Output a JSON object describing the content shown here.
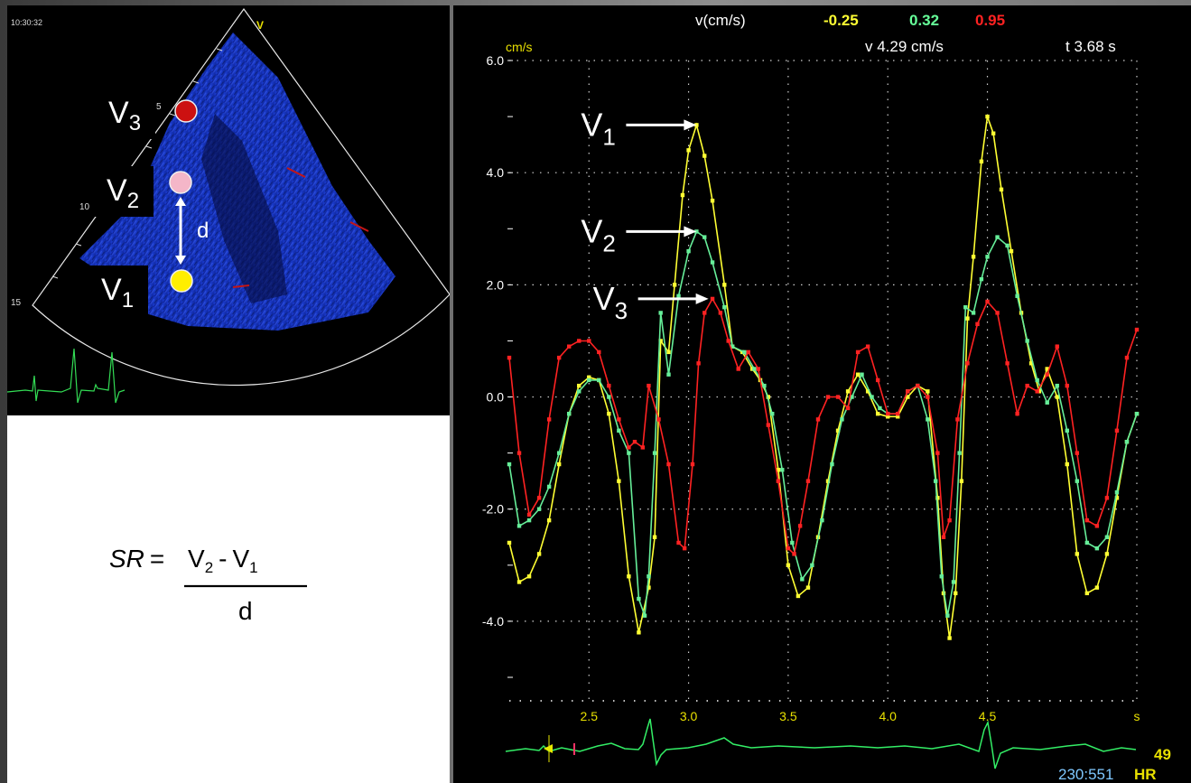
{
  "echo": {
    "timestamp": "10:30:32",
    "depth_labels": [
      "5",
      "10",
      "15"
    ],
    "marker_letter": "V",
    "points": [
      {
        "label": "V",
        "sub": "3",
        "color": "#cc1111"
      },
      {
        "label": "V",
        "sub": "2",
        "color": "#f4b6c8"
      },
      {
        "label": "V",
        "sub": "1",
        "color": "#ffee00"
      }
    ],
    "distance_label": "d"
  },
  "formula": {
    "lhs": "SR",
    "equals": "=",
    "term1": "V",
    "term1_sub": "2",
    "minus": "-",
    "term2": "V",
    "term2_sub": "1",
    "denominator": "d"
  },
  "readout": {
    "label": "v(cm/s)",
    "values": [
      "-0.25",
      "0.32",
      "0.95"
    ],
    "colors": [
      "#ffff33",
      "#66ff99",
      "#ff2222"
    ],
    "velocity": "v 4.29 cm/s",
    "time": "t 3.68 s"
  },
  "annotations": [
    {
      "label": "V",
      "sub": "1",
      "x": 3.04,
      "y": 4.85
    },
    {
      "label": "V",
      "sub": "2",
      "x": 3.04,
      "y": 2.95
    },
    {
      "label": "V",
      "sub": "3",
      "x": 3.1,
      "y": 1.75
    }
  ],
  "ecg": {
    "counter": "230:551",
    "hr_label": "HR",
    "hr_value": "49"
  },
  "chart_data": {
    "type": "line",
    "ylabel": "cm/s",
    "xlabel": "s",
    "xlim": [
      2.1,
      5.25
    ],
    "ylim": [
      -5.0,
      6.0
    ],
    "y_ticks": [
      6.0,
      4.0,
      2.0,
      0.0,
      -2.0,
      -4.0
    ],
    "y_tick_labels": [
      "6.0",
      "4.0",
      "2.0",
      "0.0",
      "-2.0",
      "-4.0"
    ],
    "x_ticks": [
      2.5,
      3.0,
      3.5,
      4.0,
      4.5
    ],
    "x_tick_labels": [
      "2.5",
      "3.0",
      "3.5",
      "4.0",
      "4.5"
    ],
    "grid": true,
    "series": [
      {
        "color": "#ffff33",
        "points": [
          [
            2.1,
            -2.6
          ],
          [
            2.15,
            -3.3
          ],
          [
            2.2,
            -3.2
          ],
          [
            2.25,
            -2.8
          ],
          [
            2.3,
            -2.2
          ],
          [
            2.35,
            -1.2
          ],
          [
            2.4,
            -0.3
          ],
          [
            2.45,
            0.2
          ],
          [
            2.5,
            0.35
          ],
          [
            2.55,
            0.3
          ],
          [
            2.6,
            -0.3
          ],
          [
            2.65,
            -1.5
          ],
          [
            2.7,
            -3.2
          ],
          [
            2.75,
            -4.2
          ],
          [
            2.8,
            -3.4
          ],
          [
            2.83,
            -2.5
          ],
          [
            2.86,
            1.0
          ],
          [
            2.9,
            0.8
          ],
          [
            2.93,
            2.0
          ],
          [
            2.97,
            3.6
          ],
          [
            3.0,
            4.4
          ],
          [
            3.04,
            4.85
          ],
          [
            3.08,
            4.3
          ],
          [
            3.12,
            3.5
          ],
          [
            3.18,
            2.0
          ],
          [
            3.22,
            0.9
          ],
          [
            3.27,
            0.8
          ],
          [
            3.32,
            0.5
          ],
          [
            3.36,
            0.3
          ],
          [
            3.4,
            0.0
          ],
          [
            3.45,
            -1.3
          ],
          [
            3.5,
            -3.0
          ],
          [
            3.55,
            -3.55
          ],
          [
            3.6,
            -3.4
          ],
          [
            3.65,
            -2.5
          ],
          [
            3.7,
            -1.5
          ],
          [
            3.75,
            -0.6
          ],
          [
            3.8,
            0.1
          ],
          [
            3.85,
            0.4
          ],
          [
            3.9,
            0.1
          ],
          [
            3.95,
            -0.3
          ],
          [
            4.0,
            -0.35
          ],
          [
            4.05,
            -0.35
          ],
          [
            4.1,
            0.0
          ],
          [
            4.15,
            0.2
          ],
          [
            4.2,
            0.1
          ],
          [
            4.25,
            -1.8
          ],
          [
            4.28,
            -3.5
          ],
          [
            4.31,
            -4.3
          ],
          [
            4.34,
            -3.5
          ],
          [
            4.37,
            -1.5
          ],
          [
            4.4,
            1.4
          ],
          [
            4.43,
            2.5
          ],
          [
            4.47,
            4.2
          ],
          [
            4.5,
            5.0
          ],
          [
            4.53,
            4.7
          ],
          [
            4.57,
            3.7
          ],
          [
            4.62,
            2.6
          ],
          [
            4.67,
            1.5
          ],
          [
            4.72,
            0.6
          ],
          [
            4.76,
            0.1
          ],
          [
            4.8,
            0.5
          ],
          [
            4.85,
            0.0
          ],
          [
            4.9,
            -1.2
          ],
          [
            4.95,
            -2.8
          ],
          [
            5.0,
            -3.5
          ],
          [
            5.05,
            -3.4
          ],
          [
            5.1,
            -2.8
          ],
          [
            5.15,
            -1.8
          ],
          [
            5.2,
            -0.8
          ],
          [
            5.25,
            -0.3
          ]
        ]
      },
      {
        "color": "#66ee99",
        "points": [
          [
            2.1,
            -1.2
          ],
          [
            2.15,
            -2.3
          ],
          [
            2.2,
            -2.2
          ],
          [
            2.25,
            -2.0
          ],
          [
            2.3,
            -1.6
          ],
          [
            2.35,
            -1.0
          ],
          [
            2.4,
            -0.3
          ],
          [
            2.45,
            0.1
          ],
          [
            2.5,
            0.3
          ],
          [
            2.55,
            0.3
          ],
          [
            2.6,
            0.0
          ],
          [
            2.65,
            -0.6
          ],
          [
            2.7,
            -1.0
          ],
          [
            2.75,
            -3.6
          ],
          [
            2.78,
            -3.9
          ],
          [
            2.8,
            -3.2
          ],
          [
            2.83,
            -1.0
          ],
          [
            2.86,
            1.5
          ],
          [
            2.9,
            0.4
          ],
          [
            2.95,
            1.8
          ],
          [
            3.0,
            2.6
          ],
          [
            3.04,
            2.95
          ],
          [
            3.08,
            2.85
          ],
          [
            3.12,
            2.4
          ],
          [
            3.18,
            1.6
          ],
          [
            3.22,
            0.9
          ],
          [
            3.28,
            0.8
          ],
          [
            3.33,
            0.5
          ],
          [
            3.38,
            0.2
          ],
          [
            3.42,
            -0.3
          ],
          [
            3.47,
            -1.3
          ],
          [
            3.52,
            -2.6
          ],
          [
            3.57,
            -3.25
          ],
          [
            3.62,
            -3.0
          ],
          [
            3.67,
            -2.2
          ],
          [
            3.72,
            -1.2
          ],
          [
            3.77,
            -0.4
          ],
          [
            3.82,
            0.0
          ],
          [
            3.87,
            0.4
          ],
          [
            3.92,
            0.0
          ],
          [
            3.96,
            -0.2
          ],
          [
            4.0,
            -0.3
          ],
          [
            4.05,
            -0.3
          ],
          [
            4.1,
            0.1
          ],
          [
            4.15,
            0.2
          ],
          [
            4.2,
            -0.4
          ],
          [
            4.24,
            -1.5
          ],
          [
            4.27,
            -3.2
          ],
          [
            4.3,
            -3.9
          ],
          [
            4.33,
            -3.3
          ],
          [
            4.36,
            -1.0
          ],
          [
            4.39,
            1.6
          ],
          [
            4.43,
            1.5
          ],
          [
            4.47,
            2.1
          ],
          [
            4.5,
            2.5
          ],
          [
            4.55,
            2.85
          ],
          [
            4.6,
            2.7
          ],
          [
            4.65,
            1.8
          ],
          [
            4.7,
            1.0
          ],
          [
            4.75,
            0.3
          ],
          [
            4.8,
            -0.1
          ],
          [
            4.85,
            0.2
          ],
          [
            4.9,
            -0.6
          ],
          [
            4.95,
            -1.5
          ],
          [
            5.0,
            -2.6
          ],
          [
            5.05,
            -2.7
          ],
          [
            5.1,
            -2.5
          ],
          [
            5.15,
            -1.7
          ],
          [
            5.2,
            -0.8
          ],
          [
            5.25,
            -0.3
          ]
        ]
      },
      {
        "color": "#ff2222",
        "points": [
          [
            2.1,
            0.7
          ],
          [
            2.15,
            -1.0
          ],
          [
            2.2,
            -2.1
          ],
          [
            2.25,
            -1.8
          ],
          [
            2.3,
            -0.4
          ],
          [
            2.35,
            0.7
          ],
          [
            2.4,
            0.9
          ],
          [
            2.45,
            1.0
          ],
          [
            2.5,
            1.0
          ],
          [
            2.55,
            0.8
          ],
          [
            2.6,
            0.2
          ],
          [
            2.65,
            -0.4
          ],
          [
            2.7,
            -0.9
          ],
          [
            2.73,
            -0.8
          ],
          [
            2.77,
            -0.9
          ],
          [
            2.8,
            0.2
          ],
          [
            2.85,
            -0.4
          ],
          [
            2.9,
            -1.2
          ],
          [
            2.95,
            -2.6
          ],
          [
            2.98,
            -2.7
          ],
          [
            3.02,
            -1.2
          ],
          [
            3.05,
            0.6
          ],
          [
            3.08,
            1.5
          ],
          [
            3.12,
            1.75
          ],
          [
            3.16,
            1.5
          ],
          [
            3.2,
            1.0
          ],
          [
            3.25,
            0.5
          ],
          [
            3.3,
            0.8
          ],
          [
            3.35,
            0.5
          ],
          [
            3.4,
            -0.5
          ],
          [
            3.45,
            -1.5
          ],
          [
            3.5,
            -2.7
          ],
          [
            3.53,
            -2.8
          ],
          [
            3.56,
            -2.3
          ],
          [
            3.6,
            -1.5
          ],
          [
            3.65,
            -0.4
          ],
          [
            3.7,
            0.0
          ],
          [
            3.75,
            0.0
          ],
          [
            3.8,
            -0.2
          ],
          [
            3.85,
            0.8
          ],
          [
            3.9,
            0.9
          ],
          [
            3.95,
            0.3
          ],
          [
            4.0,
            -0.3
          ],
          [
            4.05,
            -0.3
          ],
          [
            4.1,
            0.1
          ],
          [
            4.15,
            0.2
          ],
          [
            4.2,
            0.0
          ],
          [
            4.25,
            -1.0
          ],
          [
            4.28,
            -2.5
          ],
          [
            4.31,
            -2.2
          ],
          [
            4.35,
            -0.4
          ],
          [
            4.4,
            0.6
          ],
          [
            4.45,
            1.3
          ],
          [
            4.5,
            1.7
          ],
          [
            4.55,
            1.5
          ],
          [
            4.6,
            0.6
          ],
          [
            4.65,
            -0.3
          ],
          [
            4.7,
            0.2
          ],
          [
            4.75,
            0.1
          ],
          [
            4.8,
            0.4
          ],
          [
            4.85,
            0.9
          ],
          [
            4.9,
            0.2
          ],
          [
            4.95,
            -1.0
          ],
          [
            5.0,
            -2.2
          ],
          [
            5.05,
            -2.3
          ],
          [
            5.1,
            -1.8
          ],
          [
            5.15,
            -0.6
          ],
          [
            5.2,
            0.7
          ],
          [
            5.25,
            1.2
          ]
        ]
      }
    ]
  }
}
